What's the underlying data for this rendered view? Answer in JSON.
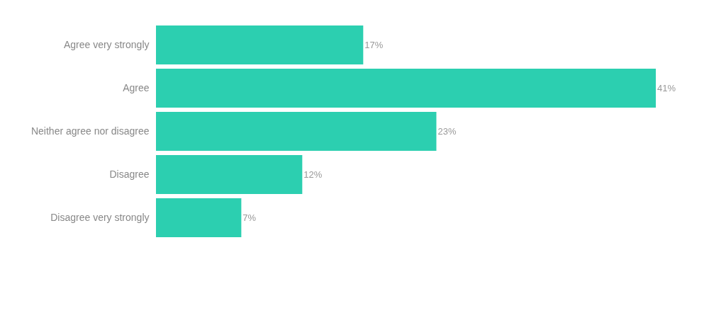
{
  "chart_data": {
    "type": "bar",
    "orientation": "horizontal",
    "categories": [
      "Agree very strongly",
      "Agree",
      "Neither agree nor disagree",
      "Disagree",
      "Disagree very strongly"
    ],
    "values": [
      17,
      41,
      23,
      12,
      7
    ],
    "value_labels": [
      "17%",
      "41%",
      "23%",
      "12%",
      "7%"
    ],
    "color": "#2ccfb0"
  }
}
